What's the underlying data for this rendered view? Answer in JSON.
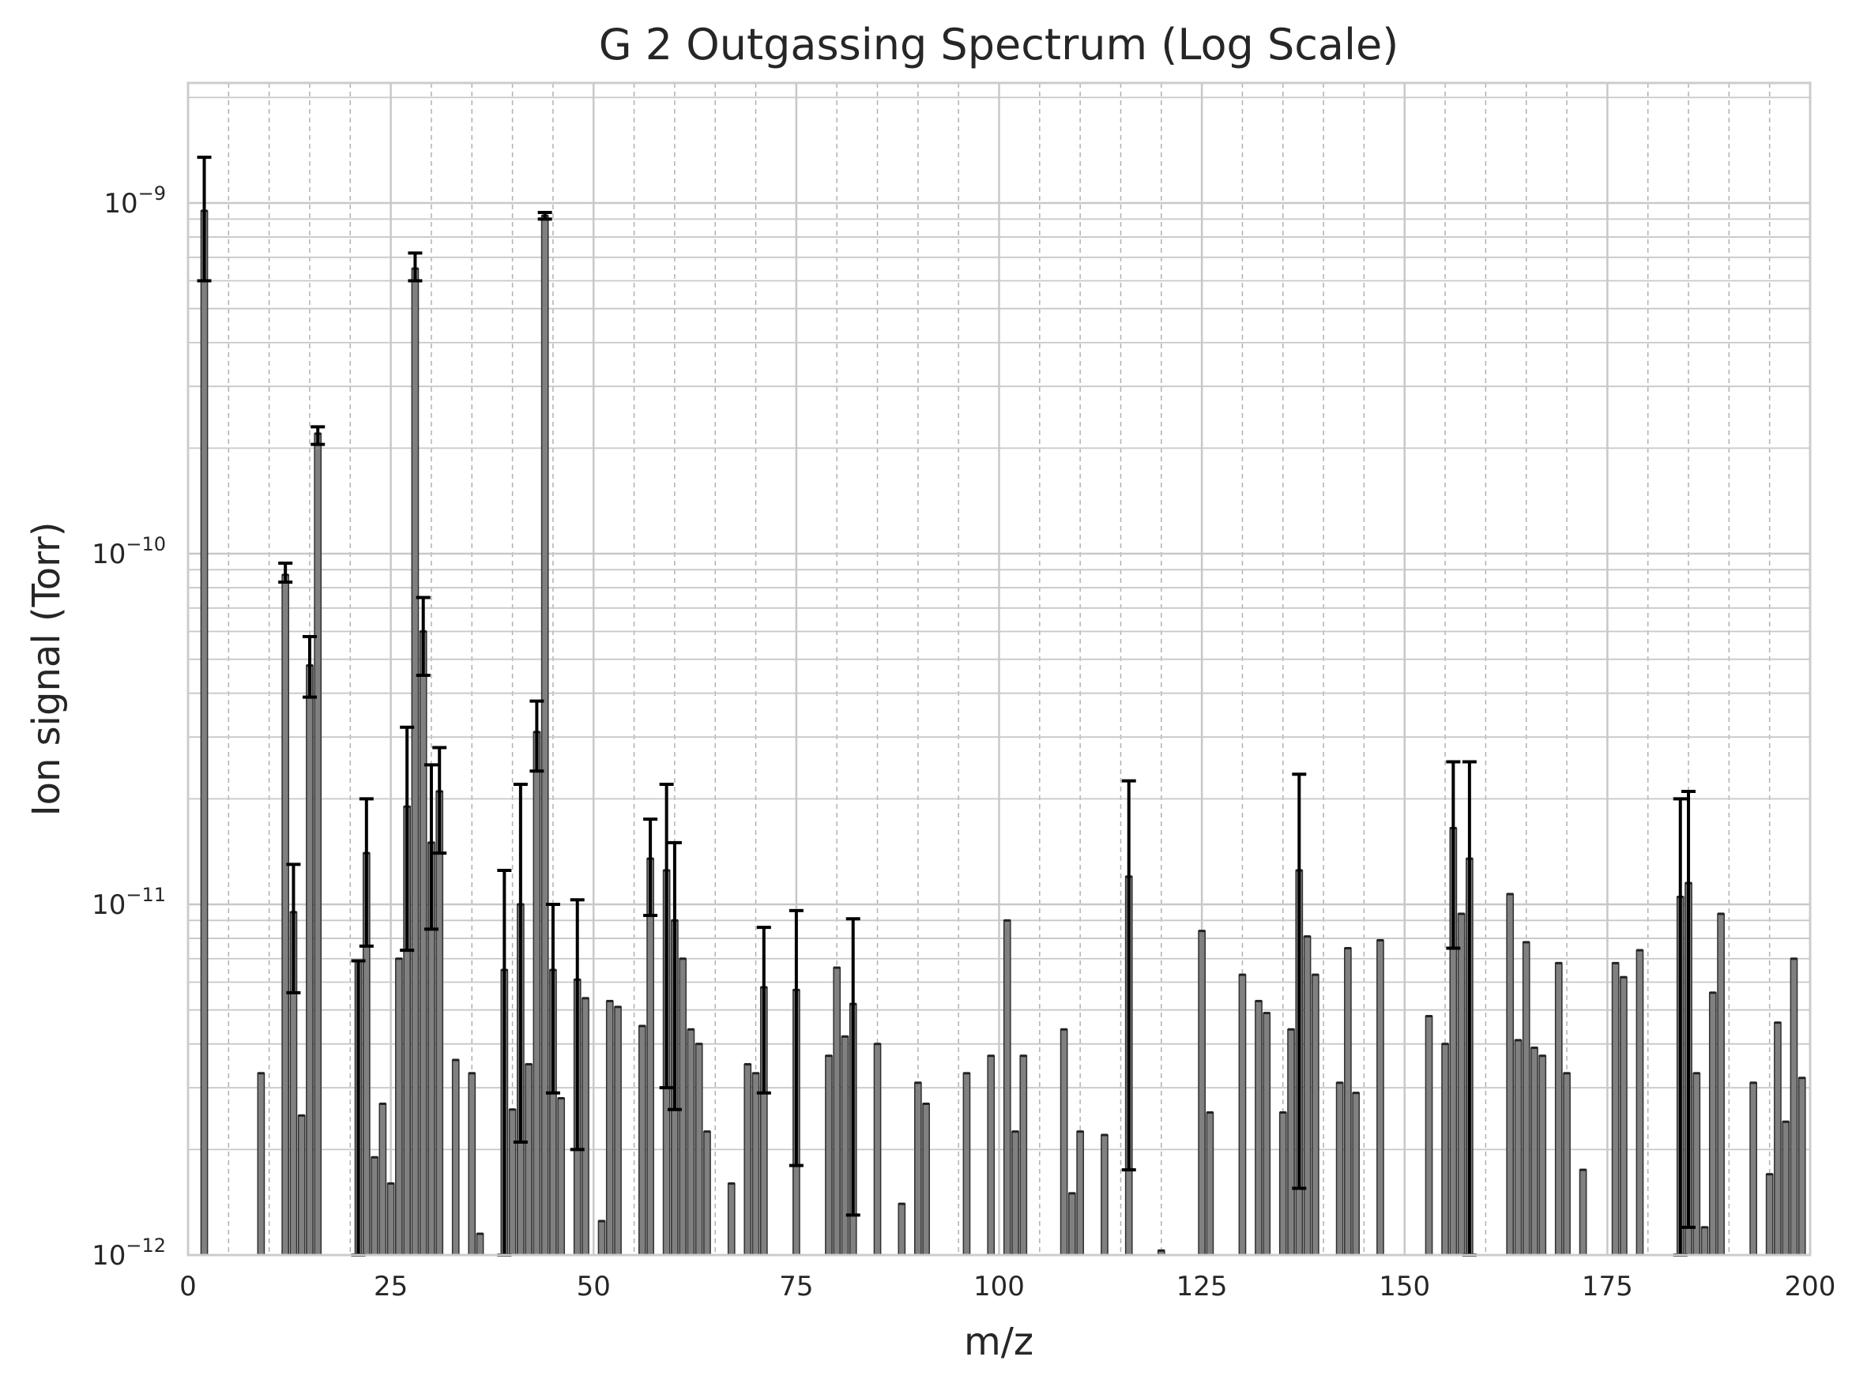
{
  "chart_data": {
    "type": "bar",
    "title": "G 2 Outgassing Spectrum (Log Scale)",
    "xlabel": "m/z",
    "ylabel": "Ion signal (Torr)",
    "xlim": [
      0,
      200
    ],
    "ylim": [
      1e-12,
      2.2e-09
    ],
    "yscale": "log",
    "grid": true,
    "x_ticks": [
      "0",
      "25",
      "50",
      "75",
      "100",
      "125",
      "150",
      "175",
      "200"
    ],
    "y_ticks": [
      {
        "base": "10",
        "exp": "−12"
      },
      {
        "base": "10",
        "exp": "−11"
      },
      {
        "base": "10",
        "exp": "−10"
      },
      {
        "base": "10",
        "exp": "−9"
      }
    ],
    "colors": {
      "bar_fill": "#808080",
      "bar_edge": "#303030",
      "error_bar": "#000000",
      "grid": "#c8c8c8",
      "spine": "#cccccc"
    },
    "bars": [
      {
        "x": 2,
        "y": 9.5e-10,
        "lo": 6e-10,
        "hi": 1.35e-09
      },
      {
        "x": 9,
        "y": 3.3e-12
      },
      {
        "x": 12,
        "y": 8.7e-11,
        "lo": 8.3e-11,
        "hi": 9.4e-11
      },
      {
        "x": 13,
        "y": 9.5e-12,
        "lo": 5.6e-12,
        "hi": 1.3e-11
      },
      {
        "x": 14,
        "y": 2.5e-12
      },
      {
        "x": 15,
        "y": 4.8e-11,
        "lo": 3.9e-11,
        "hi": 5.8e-11
      },
      {
        "x": 16,
        "y": 2.2e-10,
        "lo": 2.05e-10,
        "hi": 2.3e-10
      },
      {
        "x": 21,
        "y": 6.9e-12,
        "lo": 1e-12,
        "hi": 6.9e-12
      },
      {
        "x": 22,
        "y": 1.4e-11,
        "lo": 7.6e-12,
        "hi": 2e-11
      },
      {
        "x": 23,
        "y": 1.9e-12
      },
      {
        "x": 24,
        "y": 2.7e-12
      },
      {
        "x": 25,
        "y": 1.6e-12
      },
      {
        "x": 26,
        "y": 7e-12
      },
      {
        "x": 27,
        "y": 1.9e-11,
        "lo": 7.4e-12,
        "hi": 3.2e-11
      },
      {
        "x": 28,
        "y": 6.5e-10,
        "lo": 6e-10,
        "hi": 7.2e-10
      },
      {
        "x": 29,
        "y": 6e-11,
        "lo": 4.5e-11,
        "hi": 7.5e-11
      },
      {
        "x": 30,
        "y": 1.5e-11,
        "lo": 8.5e-12,
        "hi": 2.5e-11
      },
      {
        "x": 31,
        "y": 2.1e-11,
        "lo": 1.4e-11,
        "hi": 2.8e-11
      },
      {
        "x": 33,
        "y": 3.6e-12
      },
      {
        "x": 35,
        "y": 3.3e-12
      },
      {
        "x": 36,
        "y": 1.15e-12
      },
      {
        "x": 39,
        "y": 6.5e-12,
        "lo": 1e-12,
        "hi": 1.25e-11
      },
      {
        "x": 40,
        "y": 2.6e-12
      },
      {
        "x": 41,
        "y": 1e-11,
        "lo": 2.1e-12,
        "hi": 2.2e-11
      },
      {
        "x": 42,
        "y": 3.5e-12
      },
      {
        "x": 43,
        "y": 3.1e-11,
        "lo": 2.4e-11,
        "hi": 3.8e-11
      },
      {
        "x": 44,
        "y": 9.2e-10,
        "lo": 9e-10,
        "hi": 9.4e-10
      },
      {
        "x": 45,
        "y": 6.5e-12,
        "lo": 2.9e-12,
        "hi": 1e-11
      },
      {
        "x": 46,
        "y": 2.8e-12
      },
      {
        "x": 48,
        "y": 6.1e-12,
        "lo": 2e-12,
        "hi": 1.03e-11
      },
      {
        "x": 49,
        "y": 5.4e-12
      },
      {
        "x": 51,
        "y": 1.25e-12
      },
      {
        "x": 52,
        "y": 5.3e-12
      },
      {
        "x": 53,
        "y": 5.1e-12
      },
      {
        "x": 56,
        "y": 4.5e-12
      },
      {
        "x": 57,
        "y": 1.35e-11,
        "lo": 9.3e-12,
        "hi": 1.75e-11
      },
      {
        "x": 59,
        "y": 1.25e-11,
        "lo": 3e-12,
        "hi": 2.2e-11
      },
      {
        "x": 60,
        "y": 9e-12,
        "lo": 2.6e-12,
        "hi": 1.5e-11
      },
      {
        "x": 61,
        "y": 7e-12
      },
      {
        "x": 62,
        "y": 4.4e-12
      },
      {
        "x": 63,
        "y": 4e-12
      },
      {
        "x": 64,
        "y": 2.25e-12
      },
      {
        "x": 67,
        "y": 1.6e-12
      },
      {
        "x": 69,
        "y": 3.5e-12
      },
      {
        "x": 70,
        "y": 3.3e-12
      },
      {
        "x": 71,
        "y": 5.8e-12,
        "lo": 2.9e-12,
        "hi": 8.6e-12
      },
      {
        "x": 75,
        "y": 5.7e-12,
        "lo": 1.8e-12,
        "hi": 9.6e-12
      },
      {
        "x": 79,
        "y": 3.7e-12
      },
      {
        "x": 80,
        "y": 6.6e-12
      },
      {
        "x": 81,
        "y": 4.2e-12
      },
      {
        "x": 82,
        "y": 5.2e-12,
        "lo": 1.3e-12,
        "hi": 9.1e-12
      },
      {
        "x": 85,
        "y": 4e-12
      },
      {
        "x": 88,
        "y": 1.4e-12
      },
      {
        "x": 90,
        "y": 3.1e-12
      },
      {
        "x": 91,
        "y": 2.7e-12
      },
      {
        "x": 96,
        "y": 3.3e-12
      },
      {
        "x": 99,
        "y": 3.7e-12
      },
      {
        "x": 101,
        "y": 9e-12
      },
      {
        "x": 102,
        "y": 2.25e-12
      },
      {
        "x": 103,
        "y": 3.7e-12
      },
      {
        "x": 108,
        "y": 4.4e-12
      },
      {
        "x": 109,
        "y": 1.5e-12
      },
      {
        "x": 110,
        "y": 2.25e-12
      },
      {
        "x": 113,
        "y": 2.2e-12
      },
      {
        "x": 116,
        "y": 1.2e-11,
        "lo": 1.75e-12,
        "hi": 2.25e-11
      },
      {
        "x": 120,
        "y": 1.03e-12
      },
      {
        "x": 125,
        "y": 8.4e-12
      },
      {
        "x": 126,
        "y": 2.55e-12
      },
      {
        "x": 130,
        "y": 6.3e-12
      },
      {
        "x": 132,
        "y": 5.3e-12
      },
      {
        "x": 133,
        "y": 4.9e-12
      },
      {
        "x": 135,
        "y": 2.55e-12
      },
      {
        "x": 136,
        "y": 4.4e-12
      },
      {
        "x": 137,
        "y": 1.25e-11,
        "lo": 1.55e-12,
        "hi": 2.35e-11
      },
      {
        "x": 138,
        "y": 8.1e-12
      },
      {
        "x": 139,
        "y": 6.3e-12
      },
      {
        "x": 142,
        "y": 3.1e-12
      },
      {
        "x": 143,
        "y": 7.5e-12
      },
      {
        "x": 144,
        "y": 2.9e-12
      },
      {
        "x": 147,
        "y": 7.9e-12
      },
      {
        "x": 153,
        "y": 4.8e-12
      },
      {
        "x": 155,
        "y": 4e-12
      },
      {
        "x": 156,
        "y": 1.65e-11,
        "lo": 7.5e-12,
        "hi": 2.55e-11
      },
      {
        "x": 157,
        "y": 9.4e-12
      },
      {
        "x": 158,
        "y": 1.35e-11,
        "lo": 1e-12,
        "hi": 2.55e-11
      },
      {
        "x": 163,
        "y": 1.07e-11
      },
      {
        "x": 164,
        "y": 4.1e-12
      },
      {
        "x": 165,
        "y": 7.8e-12
      },
      {
        "x": 166,
        "y": 3.9e-12
      },
      {
        "x": 167,
        "y": 3.7e-12
      },
      {
        "x": 169,
        "y": 6.8e-12
      },
      {
        "x": 170,
        "y": 3.3e-12
      },
      {
        "x": 172,
        "y": 1.75e-12
      },
      {
        "x": 176,
        "y": 6.8e-12
      },
      {
        "x": 177,
        "y": 6.2e-12
      },
      {
        "x": 179,
        "y": 7.4e-12
      },
      {
        "x": 184,
        "y": 1.05e-11,
        "lo": 1e-12,
        "hi": 2e-11
      },
      {
        "x": 185,
        "y": 1.15e-11,
        "lo": 1.2e-12,
        "hi": 2.1e-11
      },
      {
        "x": 186,
        "y": 3.3e-12
      },
      {
        "x": 187,
        "y": 1.2e-12
      },
      {
        "x": 188,
        "y": 5.6e-12
      },
      {
        "x": 189,
        "y": 9.4e-12
      },
      {
        "x": 193,
        "y": 3.1e-12
      },
      {
        "x": 195,
        "y": 1.7e-12
      },
      {
        "x": 196,
        "y": 4.6e-12
      },
      {
        "x": 197,
        "y": 2.4e-12
      },
      {
        "x": 198,
        "y": 7e-12
      },
      {
        "x": 199,
        "y": 3.2e-12
      }
    ]
  }
}
